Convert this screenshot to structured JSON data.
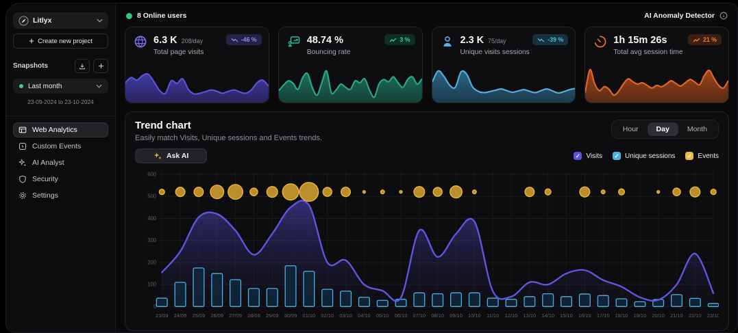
{
  "sidebar": {
    "project_name": "Litlyx",
    "create_project": "Create new project",
    "snapshots_label": "Snapshots",
    "snapshot_selected": "Last month",
    "snapshot_range": "23-09-2024 to 23-10-2024",
    "nav": [
      {
        "label": "Web Analytics",
        "active": true
      },
      {
        "label": "Custom Events",
        "active": false
      },
      {
        "label": "AI Analyst",
        "active": false
      },
      {
        "label": "Security",
        "active": false
      },
      {
        "label": "Settings",
        "active": false
      }
    ]
  },
  "topbar": {
    "online_users": "8 Online users",
    "anomaly_detector": "AI Anomaly Detector"
  },
  "cards": [
    {
      "value": "6.3 K",
      "per_day": "208/day",
      "label": "Total page visits",
      "badge": "-46 %",
      "trend": "down",
      "accent": "#7a70f0",
      "badge_bg": "#232348",
      "badge_fg": "#928ae0",
      "spark_line": "#5c52d8",
      "spark_fill": "#483fb6",
      "sparkline": [
        52,
        68,
        60,
        74,
        78,
        55,
        28,
        20,
        58,
        50,
        64,
        32,
        18,
        20,
        25,
        30,
        26,
        20,
        26,
        30,
        24,
        20,
        30,
        52,
        60,
        42
      ]
    },
    {
      "value": "48.74 %",
      "per_day": "",
      "label": "Bouncing rate",
      "badge": "3 %",
      "trend": "up",
      "accent": "#2fb792",
      "badge_bg": "#0f2e26",
      "badge_fg": "#41c79b",
      "spark_line": "#2aa884",
      "spark_fill": "#1e7d66",
      "sparkline": [
        28,
        45,
        58,
        50,
        32,
        68,
        80,
        38,
        14,
        52,
        88,
        22,
        30,
        48,
        38,
        32,
        58,
        52,
        64,
        30,
        8,
        48,
        62,
        55,
        70,
        52,
        38,
        62,
        70,
        48,
        64
      ]
    },
    {
      "value": "2.3 K",
      "per_day": "75/day",
      "label": "Unique visits sessions",
      "badge": "-39 %",
      "trend": "down",
      "accent": "#58aede",
      "badge_bg": "#14333f",
      "badge_fg": "#57b2da",
      "spark_line": "#55aedd",
      "spark_fill": "#2f6f94",
      "sparkline": [
        55,
        88,
        72,
        45,
        38,
        85,
        78,
        40,
        26,
        22,
        25,
        29,
        33,
        28,
        23,
        27,
        31,
        26,
        22,
        28,
        33,
        27,
        21,
        25,
        31,
        35
      ]
    },
    {
      "value": "1h 15m 26s",
      "per_day": "",
      "label": "Total avg session time",
      "badge": "21 %",
      "trend": "up",
      "accent": "#e8702d",
      "badge_bg": "#3b1f10",
      "badge_fg": "#f07d38",
      "spark_line": "#e2662a",
      "spark_fill": "#b04c1c",
      "sparkline": [
        22,
        92,
        48,
        28,
        40,
        32,
        14,
        26,
        48,
        64,
        55,
        48,
        52,
        44,
        36,
        44,
        40,
        48,
        58,
        50,
        42,
        52,
        62,
        54,
        46,
        74,
        90,
        66,
        44,
        36,
        58
      ]
    }
  ],
  "trend": {
    "title": "Trend chart",
    "subtitle": "Easily match Visits, Unique sessions and Events trends.",
    "ask_ai_label": "Ask AI",
    "range_tabs": [
      "Hour",
      "Day",
      "Month"
    ],
    "range_selected": "Day",
    "legend": [
      {
        "label": "Visits",
        "color": "#5b54e0"
      },
      {
        "label": "Unique sessions",
        "color": "#4fb2e6"
      },
      {
        "label": "Events",
        "color": "#e9b949"
      }
    ]
  },
  "chart_data": {
    "type": "line",
    "title": "Trend chart",
    "xlabel": "",
    "ylabel": "",
    "ylim": [
      0,
      600
    ],
    "yticks": [
      0,
      100,
      200,
      300,
      400,
      500,
      600
    ],
    "grid": true,
    "legend_position": "top-right",
    "categories": [
      "23/09",
      "24/09",
      "25/09",
      "26/09",
      "27/09",
      "28/09",
      "29/09",
      "30/09",
      "01/10",
      "02/10",
      "03/10",
      "04/10",
      "05/10",
      "06/10",
      "07/10",
      "08/10",
      "09/10",
      "10/10",
      "11/10",
      "12/10",
      "13/10",
      "14/10",
      "15/10",
      "16/10",
      "17/10",
      "18/10",
      "19/10",
      "20/10",
      "21/10",
      "22/10",
      "23/10"
    ],
    "series": [
      {
        "name": "Visits",
        "kind": "area-line",
        "color": "#6056e2",
        "values": [
          155,
          250,
          405,
          420,
          345,
          235,
          330,
          450,
          460,
          200,
          210,
          100,
          72,
          40,
          345,
          225,
          330,
          385,
          70,
          45,
          110,
          100,
          150,
          165,
          120,
          90,
          42,
          30,
          100,
          240,
          60
        ]
      },
      {
        "name": "Unique sessions",
        "kind": "bar",
        "color": "#4fb2e6",
        "fill": "rgba(17,38,58,0.88)",
        "values": [
          38,
          110,
          175,
          150,
          122,
          82,
          82,
          185,
          160,
          78,
          70,
          42,
          28,
          33,
          62,
          58,
          62,
          62,
          38,
          33,
          45,
          58,
          45,
          57,
          50,
          35,
          22,
          32,
          54,
          37,
          14
        ]
      },
      {
        "name": "Events",
        "kind": "bubble",
        "color": "#f0b63a",
        "fill": "#c9992e",
        "bubble_y": 520,
        "values": [
          4,
          12,
          12,
          25,
          30,
          8,
          16,
          36,
          49,
          11,
          12,
          1,
          2,
          1,
          16,
          11,
          20,
          2,
          0,
          0,
          12,
          5,
          0,
          14,
          2,
          5,
          0,
          1,
          8,
          14,
          4
        ]
      }
    ]
  },
  "icons": {
    "logo": "feather-quill",
    "chevron_down": "v",
    "plus": "+",
    "download": "tray-arrow",
    "info": "i-circle",
    "check": "✓",
    "sparkle": "✦"
  }
}
